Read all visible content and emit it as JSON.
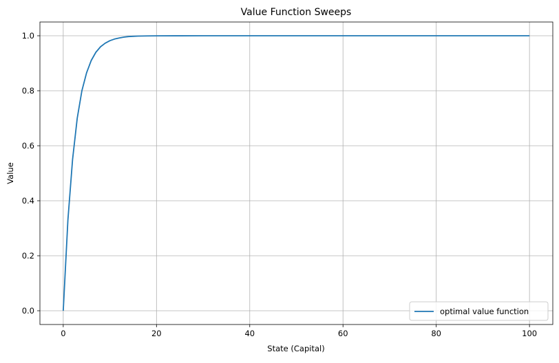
{
  "chart_data": {
    "type": "line",
    "title": "Value Function Sweeps",
    "xlabel": "State (Capital)",
    "ylabel": "Value",
    "xlim": [
      -5,
      105
    ],
    "ylim": [
      -0.05,
      1.05
    ],
    "xticks": [
      0,
      20,
      40,
      60,
      80,
      100
    ],
    "yticks": [
      0.0,
      0.2,
      0.4,
      0.6,
      0.8,
      1.0
    ],
    "xtick_labels": [
      "0",
      "20",
      "40",
      "60",
      "80",
      "100"
    ],
    "ytick_labels": [
      "0.0",
      "0.2",
      "0.4",
      "0.6",
      "0.8",
      "1.0"
    ],
    "grid": true,
    "legend_position": "lower-right",
    "series": [
      {
        "name": "optimal value function",
        "color": "#1f77b4",
        "x": [
          0,
          1,
          2,
          3,
          4,
          5,
          6,
          7,
          8,
          9,
          10,
          11,
          12,
          13,
          14,
          15,
          16,
          18,
          20,
          25,
          30,
          40,
          50,
          60,
          70,
          80,
          90,
          100
        ],
        "y": [
          0.0,
          0.33,
          0.55,
          0.7,
          0.8,
          0.865,
          0.91,
          0.94,
          0.96,
          0.973,
          0.982,
          0.988,
          0.992,
          0.995,
          0.997,
          0.998,
          0.9987,
          0.9994,
          0.9997,
          0.9999,
          1.0,
          1.0,
          1.0,
          1.0,
          1.0,
          1.0,
          1.0,
          1.0
        ]
      }
    ]
  }
}
